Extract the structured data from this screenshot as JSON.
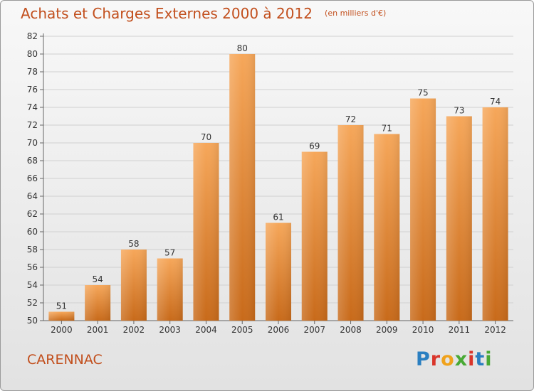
{
  "title": "Achats et Charges Externes 2000 à 2012",
  "subtitle": "(en milliers d'€)",
  "commune": "CARENNAC",
  "logo_text": "Proxiti",
  "colors": {
    "accent": "#c24f1d",
    "bar_top": "#f6a75a",
    "bar_bottom": "#c86a1a",
    "grid": "#d0d0d0"
  },
  "chart_data": {
    "type": "bar",
    "categories": [
      "2000",
      "2001",
      "2002",
      "2003",
      "2004",
      "2005",
      "2006",
      "2007",
      "2008",
      "2009",
      "2010",
      "2011",
      "2012"
    ],
    "values": [
      51,
      54,
      58,
      57,
      70,
      80,
      61,
      69,
      72,
      71,
      75,
      73,
      74
    ],
    "ylim": [
      50,
      82
    ],
    "yticks": [
      50,
      52,
      54,
      56,
      58,
      60,
      62,
      64,
      66,
      68,
      70,
      72,
      74,
      76,
      78,
      80,
      82
    ],
    "grid": true,
    "data_labels": true
  }
}
